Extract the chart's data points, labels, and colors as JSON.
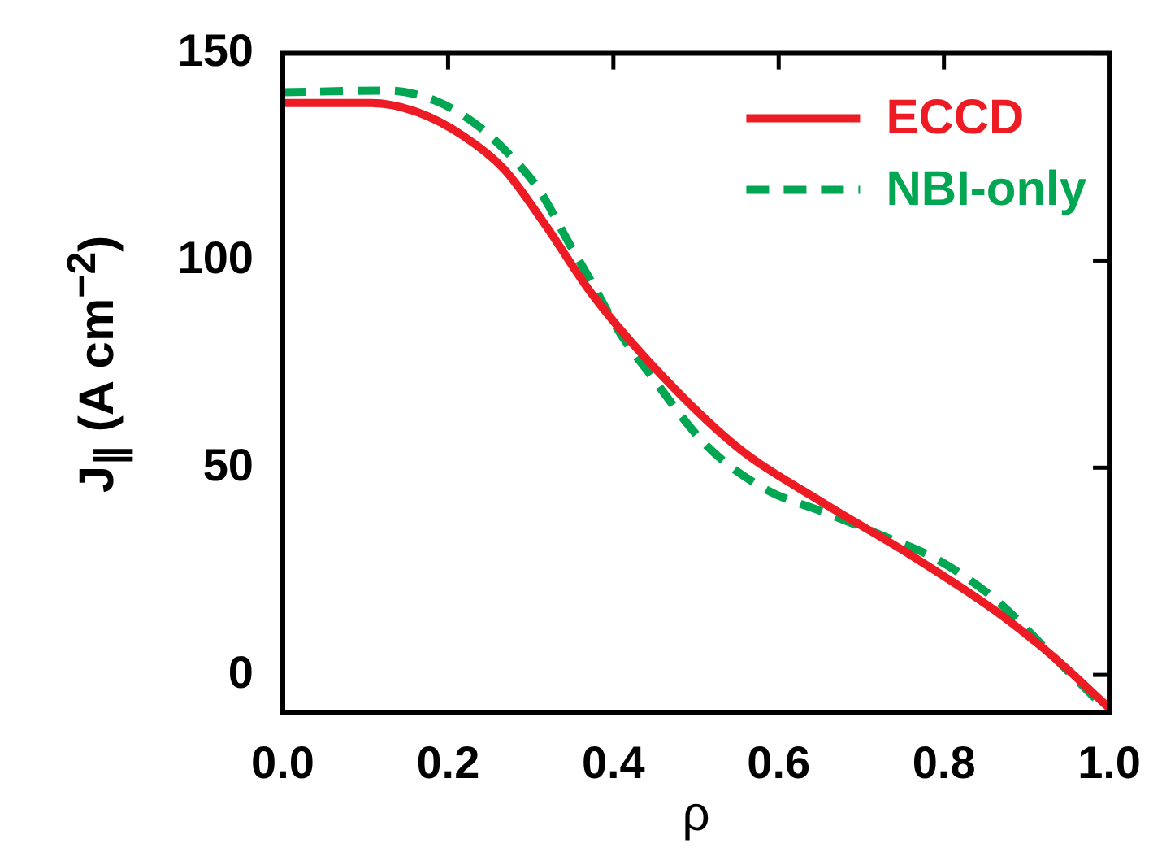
{
  "chart_data": {
    "type": "line",
    "xlabel": "ρ",
    "ylabel": "J$_{∥}$ (A cm$^{−2}$)",
    "xlim": [
      0,
      1
    ],
    "ylim": [
      -9,
      150
    ],
    "xticks": [
      {
        "value": 0,
        "label": "0.0"
      },
      0.2,
      0.4,
      0.6,
      0.8,
      {
        "value": 1,
        "label": "1.0"
      }
    ],
    "yticks": [
      0,
      50,
      100,
      150
    ],
    "grid": false,
    "legend": "top right",
    "marker": "none",
    "series": [
      {
        "name": "ECCD",
        "color": "#ed1c24",
        "line_style": "solid",
        "x": [
          0,
          0.107,
          0.163,
          0.219,
          0.268,
          0.317,
          0.373,
          0.443,
          0.548,
          0.653,
          0.759,
          0.864,
          0.934,
          1
        ],
        "values": [
          138,
          138,
          135.8,
          130,
          122,
          108.8,
          92.2,
          75.6,
          55.3,
          41.6,
          29,
          15.2,
          4.1,
          -8
        ]
      },
      {
        "name": "NBI-only",
        "color": "#00a651",
        "line_style": "dashed",
        "x": [
          0,
          0.128,
          0.184,
          0.233,
          0.275,
          0.31,
          0.345,
          0.373,
          0.408,
          0.443,
          0.513,
          0.583,
          0.653,
          0.723,
          0.794,
          0.864,
          0.934,
          1
        ],
        "values": [
          140.6,
          141,
          138.6,
          133,
          125.4,
          117.1,
          104.7,
          95,
          82.5,
          72.9,
          55.3,
          44.9,
          39.4,
          33.8,
          27.6,
          17.9,
          4.1,
          -9
        ]
      }
    ]
  }
}
